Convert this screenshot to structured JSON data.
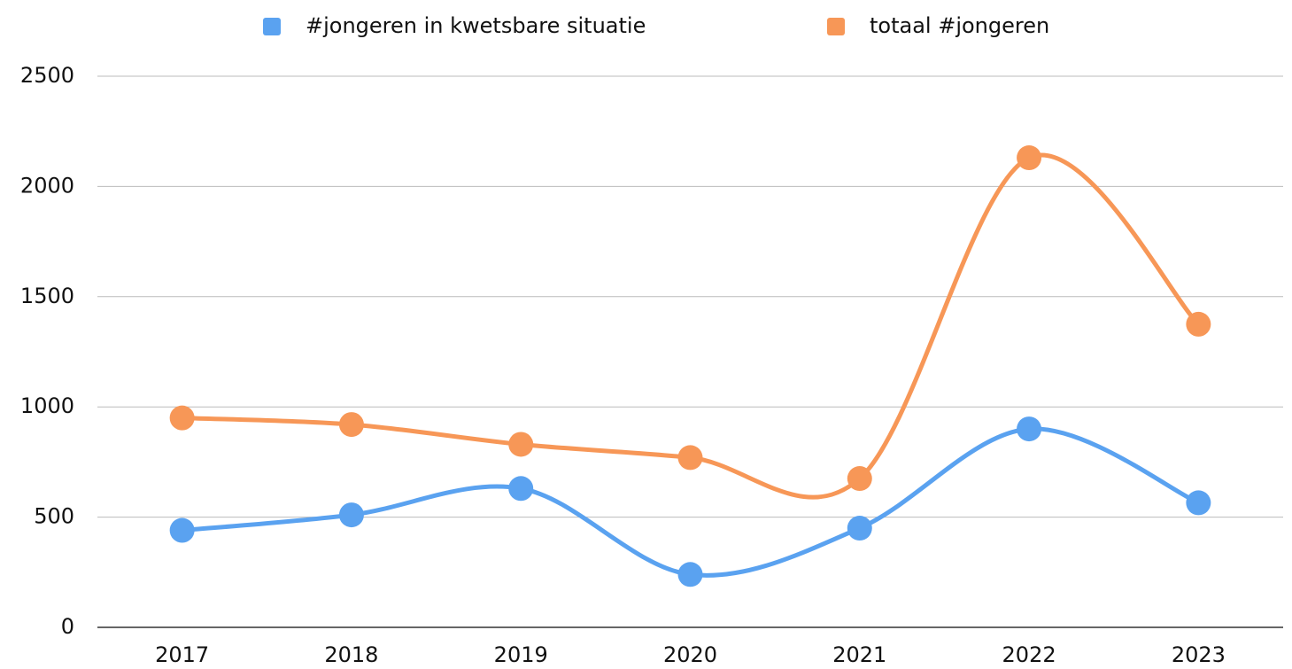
{
  "chart_data": {
    "type": "line",
    "categories": [
      "2017",
      "2018",
      "2019",
      "2020",
      "2021",
      "2022",
      "2023"
    ],
    "series": [
      {
        "name": "#jongeren in kwetsbare situatie",
        "color": "#5aa2f0",
        "values": [
          440,
          510,
          630,
          240,
          450,
          900,
          565
        ]
      },
      {
        "name": "totaal #jongeren",
        "color": "#f79757",
        "values": [
          950,
          920,
          830,
          770,
          675,
          2130,
          1375
        ]
      }
    ],
    "ylim": [
      0,
      2500
    ],
    "yticks": [
      0,
      500,
      1000,
      1500,
      2000,
      2500
    ],
    "grid": true,
    "smooth": true,
    "legend": "top"
  }
}
